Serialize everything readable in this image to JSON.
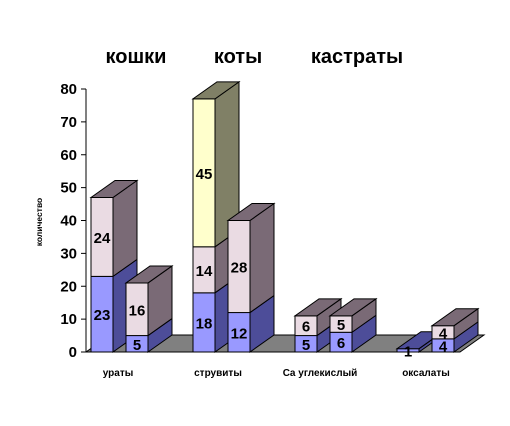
{
  "chart_data": {
    "type": "bar",
    "stacked": true,
    "three_d": true,
    "titles": [
      "кошки",
      "коты",
      "кастраты"
    ],
    "ylabel": "количество",
    "xlabel": "",
    "categories": [
      "ураты",
      "струвиты",
      "Ca углекислый",
      "оксалаты"
    ],
    "ylim": [
      0,
      80
    ],
    "yticks": [
      0,
      10,
      20,
      30,
      40,
      50,
      60,
      70,
      80
    ],
    "groups": [
      {
        "category": "ураты",
        "bars": [
          {
            "segments": [
              {
                "value": 23,
                "color": "#9999ff",
                "side_color": "#4d4d99"
              },
              {
                "value": 24,
                "color": "#eadbe3",
                "side_color": "#7a6a76"
              }
            ]
          },
          {
            "segments": [
              {
                "value": 5,
                "color": "#9999ff",
                "side_color": "#4d4d99"
              },
              {
                "value": 16,
                "color": "#eadbe3",
                "side_color": "#7a6a76"
              }
            ]
          }
        ]
      },
      {
        "category": "струвиты",
        "bars": [
          {
            "segments": [
              {
                "value": 18,
                "color": "#9999ff",
                "side_color": "#4d4d99"
              },
              {
                "value": 14,
                "color": "#eadbe3",
                "side_color": "#7a6a76"
              },
              {
                "value": 45,
                "color": "#ffffcc",
                "side_color": "#808066"
              }
            ]
          },
          {
            "segments": [
              {
                "value": 12,
                "color": "#9999ff",
                "side_color": "#4d4d99"
              },
              {
                "value": 28,
                "color": "#eadbe3",
                "side_color": "#7a6a76"
              }
            ]
          }
        ]
      },
      {
        "category": "Ca углекислый",
        "bars": [
          {
            "segments": [
              {
                "value": 5,
                "color": "#9999ff",
                "side_color": "#4d4d99"
              },
              {
                "value": 6,
                "color": "#eadbe3",
                "side_color": "#7a6a76"
              }
            ]
          },
          {
            "segments": [
              {
                "value": 6,
                "color": "#9999ff",
                "side_color": "#4d4d99"
              },
              {
                "value": 5,
                "color": "#eadbe3",
                "side_color": "#7a6a76"
              }
            ]
          }
        ]
      },
      {
        "category": "оксалаты",
        "bars": [
          {
            "segments": [
              {
                "value": 1,
                "color": "#9999ff",
                "side_color": "#4d4d99"
              }
            ]
          },
          {
            "segments": [
              {
                "value": 4,
                "color": "#9999ff",
                "side_color": "#4d4d99"
              },
              {
                "value": 4,
                "color": "#eadbe3",
                "side_color": "#7a6a76"
              }
            ]
          }
        ]
      }
    ],
    "floor_color": "#808080",
    "grid": false,
    "legend": "none"
  }
}
